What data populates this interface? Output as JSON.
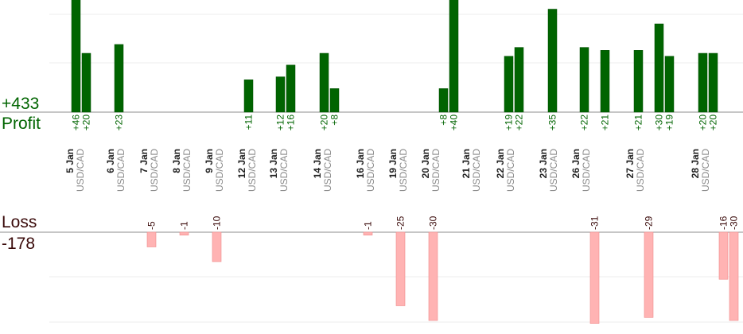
{
  "chart_data": {
    "type": "bar",
    "profit_total": "+433",
    "profit_label": "Profit",
    "loss_label": "Loss",
    "loss_total": "-178",
    "profit_color": "#006400",
    "loss_color": "#ffb3b3",
    "pair": "USD/CAD",
    "days": [
      {
        "date": "5 Jan",
        "trades": [
          46,
          20
        ]
      },
      {
        "date": "6 Jan",
        "trades": [
          23
        ]
      },
      {
        "date": "7 Jan",
        "trades": [
          -5
        ]
      },
      {
        "date": "8 Jan",
        "trades": [
          -1
        ]
      },
      {
        "date": "9 Jan",
        "trades": [
          -10
        ]
      },
      {
        "date": "12 Jan",
        "trades": [
          11
        ]
      },
      {
        "date": "13 Jan",
        "trades": [
          12,
          16
        ]
      },
      {
        "date": "14 Jan",
        "trades": [
          20,
          8
        ]
      },
      {
        "date": "16 Jan",
        "trades": [
          -1
        ]
      },
      {
        "date": "19 Jan",
        "trades": [
          -25
        ]
      },
      {
        "date": "20 Jan",
        "trades": [
          -30
        ]
      },
      {
        "date": "21 Jan",
        "trades": [
          8,
          40
        ]
      },
      {
        "date": "22 Jan",
        "trades": [
          19,
          22
        ]
      },
      {
        "date": "23 Jan",
        "trades": [
          35
        ]
      },
      {
        "date": "26 Jan",
        "trades": [
          22,
          -31,
          21
        ]
      },
      {
        "date": "27 Jan",
        "trades": [
          21,
          -29,
          30,
          19
        ]
      },
      {
        "date": "28 Jan",
        "trades": [
          20,
          20,
          -16,
          -30
        ]
      }
    ],
    "bar_labels": [
      {
        "value": 46,
        "label": "+46"
      },
      {
        "value": 20,
        "label": "+20"
      },
      {
        "value": 23,
        "label": "+23"
      },
      {
        "value": -5,
        "label": "-5"
      },
      {
        "value": -1,
        "label": "-1"
      },
      {
        "value": -10,
        "label": "-10"
      },
      {
        "value": 11,
        "label": "+11"
      },
      {
        "value": 12,
        "label": "+12"
      },
      {
        "value": 16,
        "label": "+16"
      },
      {
        "value": 20,
        "label": "+20"
      },
      {
        "value": 8,
        "label": "+8"
      },
      {
        "value": -1,
        "label": "-1"
      },
      {
        "value": -25,
        "label": "-25"
      },
      {
        "value": -30,
        "label": "-30"
      },
      {
        "value": 8,
        "label": "+8"
      },
      {
        "value": 40,
        "label": "+40"
      },
      {
        "value": 19,
        "label": "+19"
      },
      {
        "value": 22,
        "label": "+22"
      },
      {
        "value": 35,
        "label": "+35"
      },
      {
        "value": 22,
        "label": "+22"
      },
      {
        "value": -31,
        "label": "-31"
      },
      {
        "value": 21,
        "label": "+21"
      },
      {
        "value": 21,
        "label": "+21"
      },
      {
        "value": -29,
        "label": "-29"
      },
      {
        "value": 30,
        "label": "+30"
      },
      {
        "value": 19,
        "label": "+19"
      },
      {
        "value": 20,
        "label": "+20"
      },
      {
        "value": 20,
        "label": "+20"
      },
      {
        "value": -16,
        "label": "-16"
      },
      {
        "value": -30,
        "label": "-30"
      }
    ]
  }
}
